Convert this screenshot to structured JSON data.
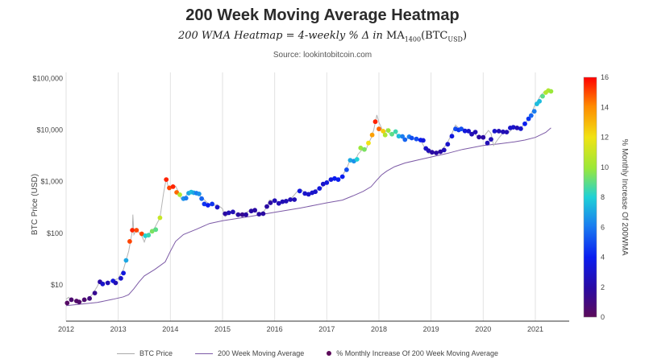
{
  "header": {
    "title": "200 Week Moving Average Heatmap",
    "subtitle_main": "200 WMA Heatmap = 4-weekly % Δ in ",
    "subtitle_ma": "MA",
    "subtitle_ma_sub": "1400",
    "subtitle_btc": "(BTC",
    "subtitle_btc_sub": "USD",
    "subtitle_close": ")",
    "source": "Source: lookintobitcoin.com"
  },
  "chart_data": {
    "type": "line",
    "title": "200 Week Moving Average Heatmap",
    "ylabel": "BTC Price (USD)",
    "xlabel": "",
    "yscale": "log",
    "ylim": [
      2,
      130000
    ],
    "xlim": [
      2012.0,
      2021.65
    ],
    "x_ticks": [
      "2012",
      "2013",
      "2014",
      "2015",
      "2016",
      "2017",
      "2018",
      "2019",
      "2020",
      "2021"
    ],
    "y_ticks": [
      {
        "value": 10,
        "label": "$10"
      },
      {
        "value": 100,
        "label": "$100"
      },
      {
        "value": 1000,
        "label": "$1,000"
      },
      {
        "value": 10000,
        "label": "$10,000"
      },
      {
        "value": 100000,
        "label": "$100,000"
      }
    ],
    "colorbar": {
      "label": "% Monthly Increase Of 200WMA",
      "min": 0,
      "max": 16,
      "ticks": [
        "0",
        "2",
        "4",
        "6",
        "8",
        "10",
        "12",
        "14",
        "16"
      ]
    },
    "legend": {
      "btc": "BTC Price",
      "ma": "200 Week Moving Average",
      "dots": "% Monthly Increase Of 200 Week Moving Average"
    },
    "colors": {
      "price": "#b5b5b5",
      "ma": "#7c5aa6",
      "grid": "#e2e2e2"
    },
    "series": [
      {
        "name": "BTC Price",
        "points": [
          [
            2012.0,
            5.3
          ],
          [
            2012.05,
            5.8
          ],
          [
            2012.1,
            4.9
          ],
          [
            2012.2,
            5.0
          ],
          [
            2012.3,
            4.8
          ],
          [
            2012.4,
            5.1
          ],
          [
            2012.5,
            6.5
          ],
          [
            2012.6,
            9.5
          ],
          [
            2012.65,
            12.5
          ],
          [
            2012.7,
            11.0
          ],
          [
            2012.8,
            11.5
          ],
          [
            2012.9,
            12.2
          ],
          [
            2013.0,
            13.4
          ],
          [
            2013.1,
            20.0
          ],
          [
            2013.2,
            45.0
          ],
          [
            2013.27,
            110
          ],
          [
            2013.28,
            230
          ],
          [
            2013.3,
            95.0
          ],
          [
            2013.35,
            118
          ],
          [
            2013.45,
            90.0
          ],
          [
            2013.5,
            68.0
          ],
          [
            2013.55,
            95.0
          ],
          [
            2013.62,
            105
          ],
          [
            2013.7,
            128
          ],
          [
            2013.8,
            200
          ],
          [
            2013.87,
            600
          ],
          [
            2013.92,
            1150
          ],
          [
            2013.97,
            700
          ],
          [
            2014.0,
            800
          ],
          [
            2014.1,
            820
          ],
          [
            2014.15,
            650
          ],
          [
            2014.2,
            480
          ],
          [
            2014.25,
            440
          ],
          [
            2014.33,
            600
          ],
          [
            2014.4,
            620
          ],
          [
            2014.5,
            600
          ],
          [
            2014.6,
            500
          ],
          [
            2014.7,
            400
          ],
          [
            2014.8,
            340
          ],
          [
            2014.9,
            360
          ],
          [
            2015.0,
            300
          ],
          [
            2015.05,
            210
          ],
          [
            2015.15,
            250
          ],
          [
            2015.3,
            230
          ],
          [
            2015.4,
            230
          ],
          [
            2015.5,
            270
          ],
          [
            2015.6,
            280
          ],
          [
            2015.7,
            240
          ],
          [
            2015.8,
            270
          ],
          [
            2015.85,
            330
          ],
          [
            2015.9,
            440
          ],
          [
            2016.0,
            430
          ],
          [
            2016.1,
            380
          ],
          [
            2016.2,
            420
          ],
          [
            2016.3,
            450
          ],
          [
            2016.45,
            680
          ],
          [
            2016.5,
            720
          ],
          [
            2016.6,
            580
          ],
          [
            2016.7,
            610
          ],
          [
            2016.8,
            700
          ],
          [
            2016.9,
            760
          ],
          [
            2017.0,
            1000
          ],
          [
            2017.1,
            1150
          ],
          [
            2017.2,
            1100
          ],
          [
            2017.3,
            1300
          ],
          [
            2017.4,
            2000
          ],
          [
            2017.45,
            2700
          ],
          [
            2017.55,
            2600
          ],
          [
            2017.6,
            3400
          ],
          [
            2017.7,
            4400
          ],
          [
            2017.75,
            4100
          ],
          [
            2017.8,
            5500
          ],
          [
            2017.85,
            7000
          ],
          [
            2017.9,
            10000
          ],
          [
            2017.96,
            19500
          ],
          [
            2018.0,
            14000
          ],
          [
            2018.05,
            11000
          ],
          [
            2018.1,
            8000
          ],
          [
            2018.15,
            10500
          ],
          [
            2018.2,
            8500
          ],
          [
            2018.3,
            8900
          ],
          [
            2018.4,
            7500
          ],
          [
            2018.5,
            6500
          ],
          [
            2018.6,
            7200
          ],
          [
            2018.7,
            6400
          ],
          [
            2018.8,
            6300
          ],
          [
            2018.88,
            4500
          ],
          [
            2018.95,
            3500
          ],
          [
            2019.0,
            3700
          ],
          [
            2019.1,
            3800
          ],
          [
            2019.2,
            4100
          ],
          [
            2019.3,
            5300
          ],
          [
            2019.4,
            8500
          ],
          [
            2019.47,
            12500
          ],
          [
            2019.55,
            10500
          ],
          [
            2019.6,
            10800
          ],
          [
            2019.7,
            10000
          ],
          [
            2019.75,
            8200
          ],
          [
            2019.8,
            9200
          ],
          [
            2019.9,
            7300
          ],
          [
            2020.0,
            7200
          ],
          [
            2020.1,
            9800
          ],
          [
            2020.15,
            8600
          ],
          [
            2020.2,
            5000
          ],
          [
            2020.3,
            7000
          ],
          [
            2020.4,
            9300
          ],
          [
            2020.5,
            9100
          ],
          [
            2020.6,
            11500
          ],
          [
            2020.7,
            10800
          ],
          [
            2020.8,
            13000
          ],
          [
            2020.85,
            15500
          ],
          [
            2020.9,
            19000
          ],
          [
            2020.95,
            24000
          ],
          [
            2021.0,
            32000
          ],
          [
            2021.05,
            37000
          ],
          [
            2021.1,
            47000
          ],
          [
            2021.15,
            52000
          ],
          [
            2021.2,
            58000
          ],
          [
            2021.28,
            57000
          ],
          [
            2021.3,
            59000
          ]
        ]
      },
      {
        "name": "200 Week Moving Average",
        "points": [
          [
            2012.0,
            4.0
          ],
          [
            2012.3,
            4.3
          ],
          [
            2012.6,
            4.6
          ],
          [
            2012.9,
            5.3
          ],
          [
            2013.1,
            5.9
          ],
          [
            2013.2,
            6.5
          ],
          [
            2013.3,
            8.5
          ],
          [
            2013.4,
            11.5
          ],
          [
            2013.5,
            15.0
          ],
          [
            2013.7,
            20.0
          ],
          [
            2013.9,
            28.0
          ],
          [
            2014.0,
            45.0
          ],
          [
            2014.1,
            70.0
          ],
          [
            2014.25,
            95.0
          ],
          [
            2014.5,
            120
          ],
          [
            2014.75,
            155
          ],
          [
            2015.0,
            175
          ],
          [
            2015.5,
            210
          ],
          [
            2016.0,
            255
          ],
          [
            2016.5,
            310
          ],
          [
            2017.0,
            390
          ],
          [
            2017.3,
            440
          ],
          [
            2017.5,
            530
          ],
          [
            2017.7,
            650
          ],
          [
            2017.85,
            800
          ],
          [
            2017.95,
            1050
          ],
          [
            2018.05,
            1350
          ],
          [
            2018.15,
            1600
          ],
          [
            2018.3,
            1950
          ],
          [
            2018.5,
            2300
          ],
          [
            2018.8,
            2700
          ],
          [
            2019.0,
            3000
          ],
          [
            2019.3,
            3500
          ],
          [
            2019.6,
            4200
          ],
          [
            2019.8,
            4600
          ],
          [
            2020.0,
            5000
          ],
          [
            2020.3,
            5400
          ],
          [
            2020.6,
            5900
          ],
          [
            2020.8,
            6400
          ],
          [
            2021.0,
            7200
          ],
          [
            2021.2,
            9000
          ],
          [
            2021.3,
            11000
          ]
        ]
      }
    ],
    "heat_dots": [
      [
        2012.02,
        4.5,
        0.3
      ],
      [
        2012.1,
        5.2,
        0.6
      ],
      [
        2012.2,
        4.9,
        0.4
      ],
      [
        2012.25,
        4.7,
        0.5
      ],
      [
        2012.35,
        5.2,
        0.6
      ],
      [
        2012.45,
        5.5,
        1.0
      ],
      [
        2012.55,
        7.0,
        1.5
      ],
      [
        2012.65,
        11.5,
        2.0
      ],
      [
        2012.7,
        10.5,
        3.0
      ],
      [
        2012.8,
        11.0,
        2.5
      ],
      [
        2012.9,
        12.0,
        3.5
      ],
      [
        2012.95,
        11.0,
        2.5
      ],
      [
        2013.05,
        13.5,
        3.0
      ],
      [
        2013.1,
        17.0,
        3.5
      ],
      [
        2013.15,
        30.0,
        7.0
      ],
      [
        2013.22,
        70.0,
        15.0
      ],
      [
        2013.27,
        115.0,
        15.5
      ],
      [
        2013.35,
        115.0,
        15.0
      ],
      [
        2013.45,
        98.0,
        15.0
      ],
      [
        2013.52,
        90.0,
        8.0
      ],
      [
        2013.58,
        92.0,
        8.5
      ],
      [
        2013.65,
        110.0,
        9.5
      ],
      [
        2013.72,
        118.0,
        9.0
      ],
      [
        2013.8,
        200.0,
        11.0
      ],
      [
        2013.92,
        1100.0,
        15.5
      ],
      [
        2013.98,
        760.0,
        15.0
      ],
      [
        2014.05,
        800.0,
        15.5
      ],
      [
        2014.12,
        620.0,
        14.5
      ],
      [
        2014.18,
        560.0,
        10.5
      ],
      [
        2014.25,
        470.0,
        6.5
      ],
      [
        2014.3,
        480.0,
        6.0
      ],
      [
        2014.35,
        600.0,
        7.0
      ],
      [
        2014.4,
        630.0,
        7.5
      ],
      [
        2014.45,
        610.0,
        7.0
      ],
      [
        2014.5,
        600.0,
        6.0
      ],
      [
        2014.55,
        580.0,
        6.5
      ],
      [
        2014.6,
        470.0,
        5.5
      ],
      [
        2014.65,
        370.0,
        4.5
      ],
      [
        2014.72,
        350.0,
        4.0
      ],
      [
        2014.8,
        370.0,
        4.5
      ],
      [
        2014.9,
        320.0,
        3.0
      ],
      [
        2015.05,
        240.0,
        2.0
      ],
      [
        2015.12,
        250.0,
        2.5
      ],
      [
        2015.2,
        260.0,
        2.5
      ],
      [
        2015.3,
        230.0,
        2.0
      ],
      [
        2015.38,
        230.0,
        1.5
      ],
      [
        2015.45,
        230.0,
        2.0
      ],
      [
        2015.55,
        270.0,
        2.0
      ],
      [
        2015.62,
        280.0,
        2.0
      ],
      [
        2015.7,
        235.0,
        2.0
      ],
      [
        2015.78,
        240.0,
        2.0
      ],
      [
        2015.85,
        330.0,
        2.0
      ],
      [
        2015.92,
        390.0,
        2.0
      ],
      [
        2016.0,
        430.0,
        2.5
      ],
      [
        2016.08,
        380.0,
        2.5
      ],
      [
        2016.15,
        410.0,
        2.5
      ],
      [
        2016.22,
        420.0,
        2.5
      ],
      [
        2016.3,
        450.0,
        2.5
      ],
      [
        2016.38,
        450.0,
        2.5
      ],
      [
        2016.48,
        660.0,
        3.5
      ],
      [
        2016.58,
        590.0,
        3.0
      ],
      [
        2016.65,
        570.0,
        3.0
      ],
      [
        2016.72,
        610.0,
        3.0
      ],
      [
        2016.78,
        640.0,
        3.0
      ],
      [
        2016.86,
        740.0,
        3.5
      ],
      [
        2016.93,
        900.0,
        3.0
      ],
      [
        2017.0,
        960.0,
        3.5
      ],
      [
        2017.08,
        1100.0,
        3.5
      ],
      [
        2017.15,
        1150.0,
        4.0
      ],
      [
        2017.22,
        1100.0,
        4.0
      ],
      [
        2017.3,
        1250.0,
        4.0
      ],
      [
        2017.38,
        1700.0,
        5.0
      ],
      [
        2017.45,
        2600.0,
        7.0
      ],
      [
        2017.52,
        2500.0,
        6.5
      ],
      [
        2017.58,
        2700.0,
        8.0
      ],
      [
        2017.65,
        4500.0,
        10.0
      ],
      [
        2017.72,
        4200.0,
        9.5
      ],
      [
        2017.8,
        5600.0,
        12.0
      ],
      [
        2017.87,
        8000.0,
        13.5
      ],
      [
        2017.93,
        14500.0,
        15.5
      ],
      [
        2018.0,
        10500.0,
        14.5
      ],
      [
        2018.08,
        9500.0,
        12.5
      ],
      [
        2018.12,
        8000.0,
        10.5
      ],
      [
        2018.18,
        9800.0,
        10.0
      ],
      [
        2018.25,
        8300.0,
        9.0
      ],
      [
        2018.32,
        9300.0,
        8.5
      ],
      [
        2018.38,
        7600.0,
        7.5
      ],
      [
        2018.45,
        7500.0,
        6.0
      ],
      [
        2018.5,
        6500.0,
        5.5
      ],
      [
        2018.58,
        7400.0,
        6.0
      ],
      [
        2018.63,
        7000.0,
        5.0
      ],
      [
        2018.72,
        6700.0,
        5.0
      ],
      [
        2018.8,
        6400.0,
        4.0
      ],
      [
        2018.85,
        6300.0,
        3.5
      ],
      [
        2018.9,
        4400.0,
        3.0
      ],
      [
        2018.95,
        4000.0,
        2.5
      ],
      [
        2019.02,
        3700.0,
        2.0
      ],
      [
        2019.1,
        3600.0,
        2.0
      ],
      [
        2019.18,
        3800.0,
        2.0
      ],
      [
        2019.25,
        4100.0,
        2.5
      ],
      [
        2019.32,
        5300.0,
        3.0
      ],
      [
        2019.4,
        7600.0,
        3.5
      ],
      [
        2019.47,
        10500.0,
        5.0
      ],
      [
        2019.53,
        10000.0,
        4.5
      ],
      [
        2019.58,
        10500.0,
        5.0
      ],
      [
        2019.65,
        9600.0,
        3.5
      ],
      [
        2019.72,
        9500.0,
        3.0
      ],
      [
        2019.78,
        8300.0,
        2.5
      ],
      [
        2019.85,
        9100.0,
        2.5
      ],
      [
        2019.92,
        7300.0,
        2.0
      ],
      [
        2020.0,
        7200.0,
        2.0
      ],
      [
        2020.08,
        5600.0,
        2.5
      ],
      [
        2020.15,
        6600.0,
        2.5
      ],
      [
        2020.22,
        9500.0,
        3.0
      ],
      [
        2020.3,
        9500.0,
        2.5
      ],
      [
        2020.38,
        9200.0,
        2.5
      ],
      [
        2020.45,
        9100.0,
        2.5
      ],
      [
        2020.52,
        11000.0,
        3.0
      ],
      [
        2020.58,
        11300.0,
        3.0
      ],
      [
        2020.65,
        11000.0,
        2.5
      ],
      [
        2020.72,
        10600.0,
        3.0
      ],
      [
        2020.8,
        13200.0,
        4.0
      ],
      [
        2020.87,
        16500.0,
        4.5
      ],
      [
        2020.92,
        19000.0,
        5.5
      ],
      [
        2020.98,
        23000.0,
        6.0
      ],
      [
        2021.03,
        32000.0,
        7.5
      ],
      [
        2021.08,
        36000.0,
        7.5
      ],
      [
        2021.14,
        45000.0,
        9.0
      ],
      [
        2021.2,
        53000.0,
        10.5
      ],
      [
        2021.25,
        58000.0,
        10.5
      ],
      [
        2021.3,
        56000.0,
        10.0
      ]
    ]
  }
}
